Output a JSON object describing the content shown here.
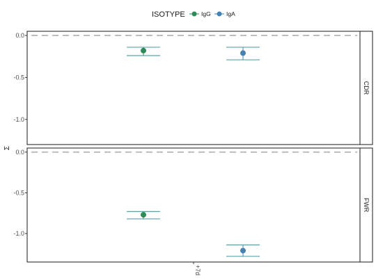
{
  "colors": {
    "IgG": "#2e8b57",
    "IgA": "#4682b4",
    "errorbar": "#5ba3a8",
    "reference_line": "#bdbdbd",
    "frame": "#1a1a1a"
  },
  "chart_data": {
    "type": "scatter",
    "x_categories": [
      "+7d"
    ],
    "ylabel": "Σ",
    "xlabel": "",
    "legend": {
      "title": "ISOTYPE",
      "placement": "top",
      "entries": [
        "IgG",
        "IgA"
      ]
    },
    "reference_line_y": 0,
    "panels": [
      {
        "strip": "CDR",
        "ylim": [
          -1.3,
          0.05
        ],
        "yticks": [
          0.0,
          -0.5,
          -1.0
        ],
        "ytick_labels": [
          "0.0",
          "-0.5",
          "-1.0"
        ],
        "series": [
          {
            "name": "IgG",
            "x": "+7d",
            "y": -0.18,
            "ci": [
              -0.24,
              -0.14
            ]
          },
          {
            "name": "IgA",
            "x": "+7d",
            "y": -0.21,
            "ci": [
              -0.29,
              -0.14
            ]
          }
        ]
      },
      {
        "strip": "FWR",
        "ylim": [
          -1.35,
          0.05
        ],
        "yticks": [
          0.0,
          -0.5,
          -1.0
        ],
        "ytick_labels": [
          "0.0",
          "-0.5",
          "-1.0"
        ],
        "series": [
          {
            "name": "IgG",
            "x": "+7d",
            "y": -0.77,
            "ci": [
              -0.82,
              -0.73
            ]
          },
          {
            "name": "IgA",
            "x": "+7d",
            "y": -1.21,
            "ci": [
              -1.28,
              -1.14
            ]
          }
        ]
      }
    ]
  }
}
